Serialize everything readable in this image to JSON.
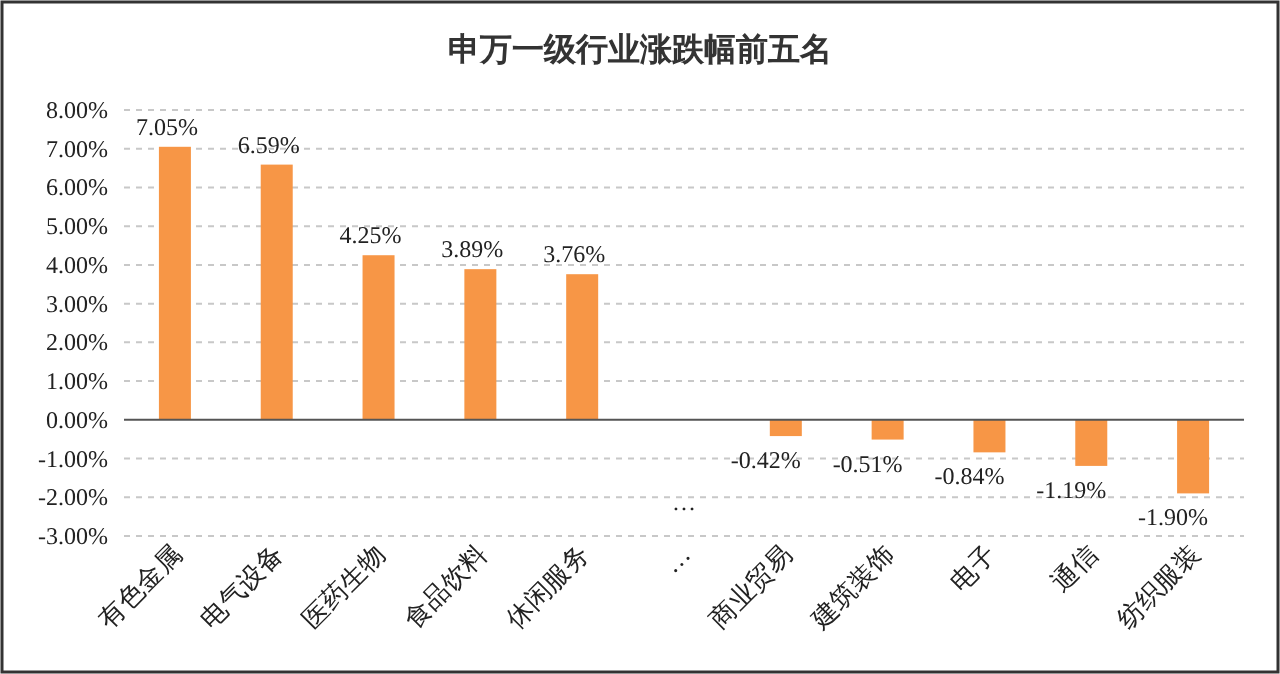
{
  "chart_data": {
    "type": "bar",
    "title": "申万一级行业涨跌幅前五名",
    "categories": [
      "有色金属",
      "电气设备",
      "医药生物",
      "食品饮料",
      "休闲服务",
      "…",
      "商业贸易",
      "建筑装饰",
      "电子",
      "通信",
      "纺织服装"
    ],
    "values": [
      7.05,
      6.59,
      4.25,
      3.89,
      3.76,
      null,
      -0.42,
      -0.51,
      -0.84,
      -1.19,
      -1.9
    ],
    "value_labels": [
      "7.05%",
      "6.59%",
      "4.25%",
      "3.89%",
      "3.76%",
      null,
      "-0.42%",
      "-0.51%",
      "-0.84%",
      "-1.19%",
      "-1.90%"
    ],
    "color": "#f79646",
    "ylim": [
      -3,
      8
    ],
    "yticks": [
      {
        "value": -3,
        "label": "-3.00%"
      },
      {
        "value": -2,
        "label": "-2.00%"
      },
      {
        "value": -1,
        "label": "-1.00%"
      },
      {
        "value": 0,
        "label": "0.00%"
      },
      {
        "value": 1,
        "label": "1.00%"
      },
      {
        "value": 2,
        "label": "2.00%"
      },
      {
        "value": 3,
        "label": "3.00%"
      },
      {
        "value": 4,
        "label": "4.00%"
      },
      {
        "value": 5,
        "label": "5.00%"
      },
      {
        "value": 6,
        "label": "6.00%"
      },
      {
        "value": 7,
        "label": "7.00%"
      },
      {
        "value": 8,
        "label": "8.00%"
      }
    ],
    "grid": "y",
    "annotations": [
      "…"
    ]
  }
}
